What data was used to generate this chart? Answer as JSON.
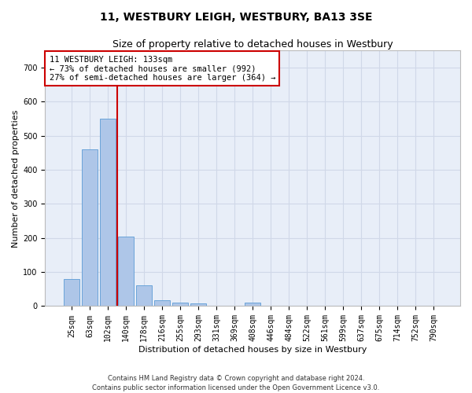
{
  "title": "11, WESTBURY LEIGH, WESTBURY, BA13 3SE",
  "subtitle": "Size of property relative to detached houses in Westbury",
  "xlabel": "Distribution of detached houses by size in Westbury",
  "ylabel": "Number of detached properties",
  "categories": [
    "25sqm",
    "63sqm",
    "102sqm",
    "140sqm",
    "178sqm",
    "216sqm",
    "255sqm",
    "293sqm",
    "331sqm",
    "369sqm",
    "408sqm",
    "446sqm",
    "484sqm",
    "522sqm",
    "561sqm",
    "599sqm",
    "637sqm",
    "675sqm",
    "714sqm",
    "752sqm",
    "790sqm"
  ],
  "bar_heights": [
    80,
    460,
    550,
    205,
    60,
    17,
    10,
    8,
    0,
    0,
    10,
    0,
    0,
    0,
    0,
    0,
    0,
    0,
    0,
    0,
    0
  ],
  "bar_color": "#aec6e8",
  "bar_edge_color": "#5b9bd5",
  "grid_color": "#d0d8e8",
  "background_color": "#e8eef8",
  "property_line_color": "#cc0000",
  "property_line_bin": 3,
  "annotation_text": "11 WESTBURY LEIGH: 133sqm\n← 73% of detached houses are smaller (992)\n27% of semi-detached houses are larger (364) →",
  "annotation_box_color": "#ffffff",
  "annotation_box_edge": "#cc0000",
  "footer": "Contains HM Land Registry data © Crown copyright and database right 2024.\nContains public sector information licensed under the Open Government Licence v3.0.",
  "ylim": [
    0,
    750
  ],
  "yticks": [
    0,
    100,
    200,
    300,
    400,
    500,
    600,
    700
  ],
  "title_fontsize": 10,
  "subtitle_fontsize": 9,
  "xlabel_fontsize": 8,
  "ylabel_fontsize": 8,
  "tick_fontsize": 7,
  "footer_fontsize": 6
}
